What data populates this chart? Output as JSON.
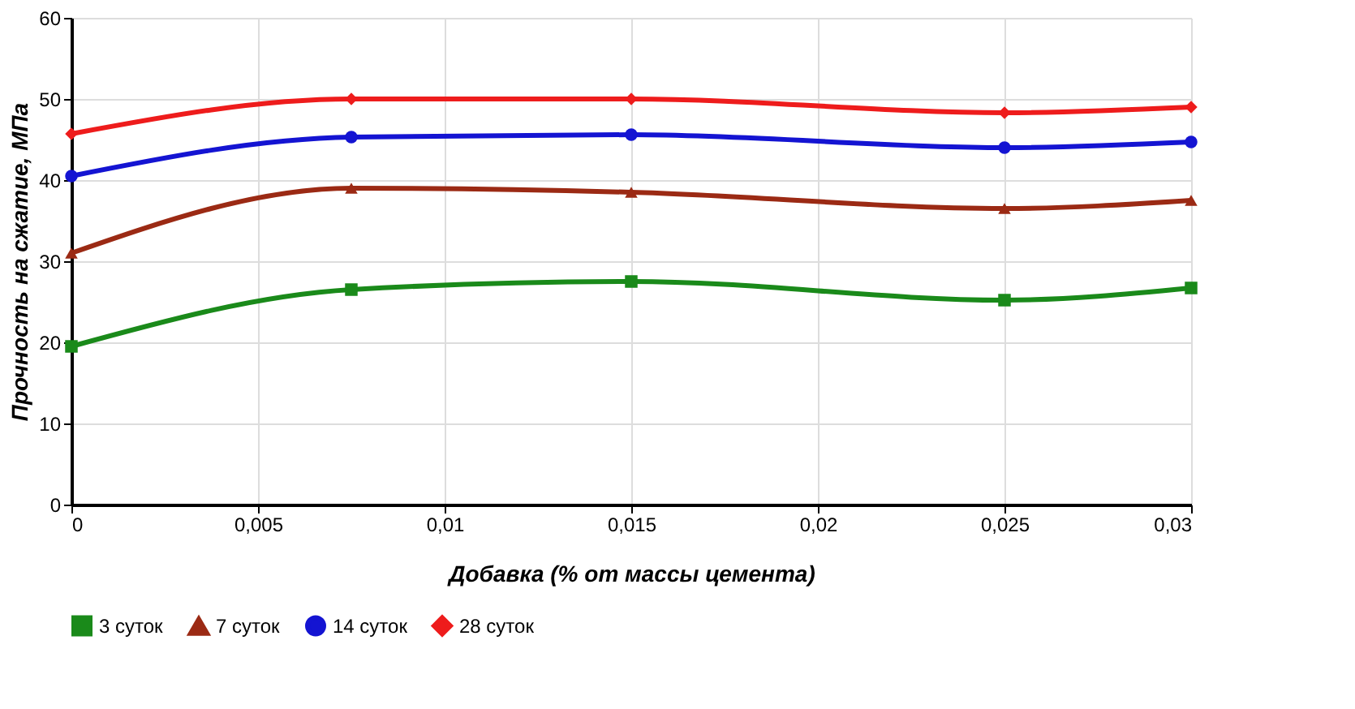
{
  "chart_data": {
    "type": "line",
    "xlabel": "Добавка (% от массы цемента)",
    "ylabel": "Прочность на сжатие, МПа",
    "x": [
      0,
      0.0075,
      0.015,
      0.025,
      0.03
    ],
    "series": [
      {
        "name": "3 суток",
        "color": "#1a8a1a",
        "marker": "square",
        "values": [
          19.5,
          26.5,
          27.5,
          25.2,
          26.7
        ]
      },
      {
        "name": "7 суток",
        "color": "#9b2a14",
        "marker": "triangle",
        "values": [
          31,
          39,
          38.5,
          36.5,
          37.5
        ]
      },
      {
        "name": "14 суток",
        "color": "#1414d2",
        "marker": "circle",
        "values": [
          40.5,
          45.3,
          45.6,
          44,
          44.7
        ]
      },
      {
        "name": "28 суток",
        "color": "#ee1c1c",
        "marker": "diamond",
        "values": [
          45.7,
          50,
          50,
          48.3,
          49
        ]
      }
    ],
    "xlim": [
      0,
      0.03
    ],
    "xticks": [
      0,
      {
        "value": 0.005,
        "label": "0,005"
      },
      {
        "value": 0.01,
        "label": "0,01"
      },
      {
        "value": 0.015,
        "label": "0,015"
      },
      {
        "value": 0.02,
        "label": "0,02"
      },
      {
        "value": 0.025,
        "label": "0,025"
      },
      {
        "value": 0.03,
        "label": "0,03"
      }
    ],
    "ylim": [
      0,
      60
    ],
    "yticks": [
      0,
      10,
      20,
      30,
      40,
      50,
      60
    ],
    "grid": true,
    "legend": "bottom",
    "line_style": "solid"
  }
}
